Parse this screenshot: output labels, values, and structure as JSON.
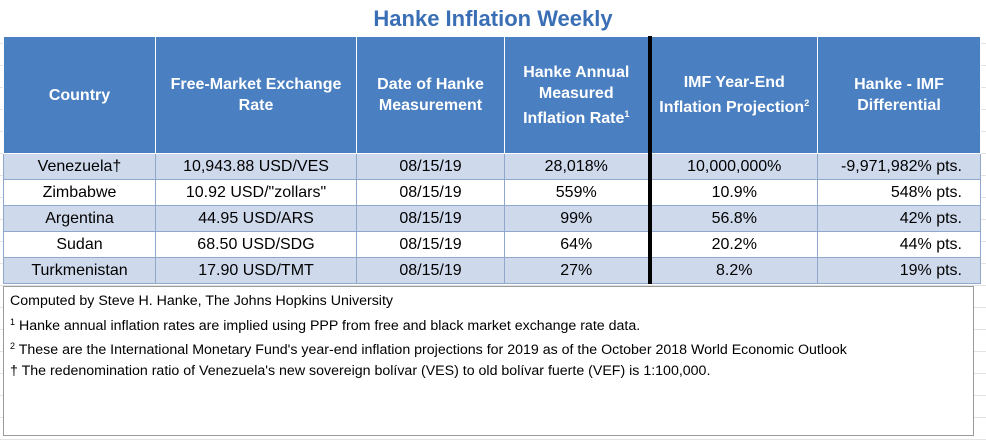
{
  "title": "Hanke Inflation Weekly",
  "columns": [
    {
      "label": "Country",
      "sup": ""
    },
    {
      "label": "Free-Market Exchange Rate",
      "sup": ""
    },
    {
      "label": "Date of Hanke Measurement",
      "sup": ""
    },
    {
      "label": "Hanke Annual Measured Inflation Rate",
      "sup": "1"
    },
    {
      "label": "IMF Year-End Inflation Projection",
      "sup": "2"
    },
    {
      "label": "Hanke - IMF Differential",
      "sup": ""
    }
  ],
  "rows": [
    {
      "country": "Venezuela†",
      "rate": "10,943.88 USD/VES",
      "date": "08/15/19",
      "hanke": "28,018%",
      "imf": "10,000,000%",
      "diff": "-9,971,982% pts."
    },
    {
      "country": "Zimbabwe",
      "rate": "10.92 USD/\"zollars\"",
      "date": "08/15/19",
      "hanke": "559%",
      "imf": "10.9%",
      "diff": "548% pts."
    },
    {
      "country": "Argentina",
      "rate": "44.95 USD/ARS",
      "date": "08/15/19",
      "hanke": "99%",
      "imf": "56.8%",
      "diff": "42% pts."
    },
    {
      "country": "Sudan",
      "rate": "68.50 USD/SDG",
      "date": "08/15/19",
      "hanke": "64%",
      "imf": "20.2%",
      "diff": "44% pts."
    },
    {
      "country": "Turkmenistan",
      "rate": "17.90 USD/TMT",
      "date": "08/15/19",
      "hanke": "27%",
      "imf": "8.2%",
      "diff": "19% pts."
    }
  ],
  "notes": {
    "credit": "Computed by Steve H. Hanke, The Johns Hopkins University",
    "note1_mark": "1",
    "note1": " Hanke annual inflation rates are implied using PPP from free and black market exchange rate data.",
    "note2_mark": "2",
    "note2": " These are the International Monetary Fund's year-end inflation projections for 2019 as of the October 2018 World Economic Outlook",
    "dagger": "† The redenomination ratio of Venezuela's new sovereign bolívar (VES) to old bolívar fuerte (VEF) is 1:100,000."
  }
}
